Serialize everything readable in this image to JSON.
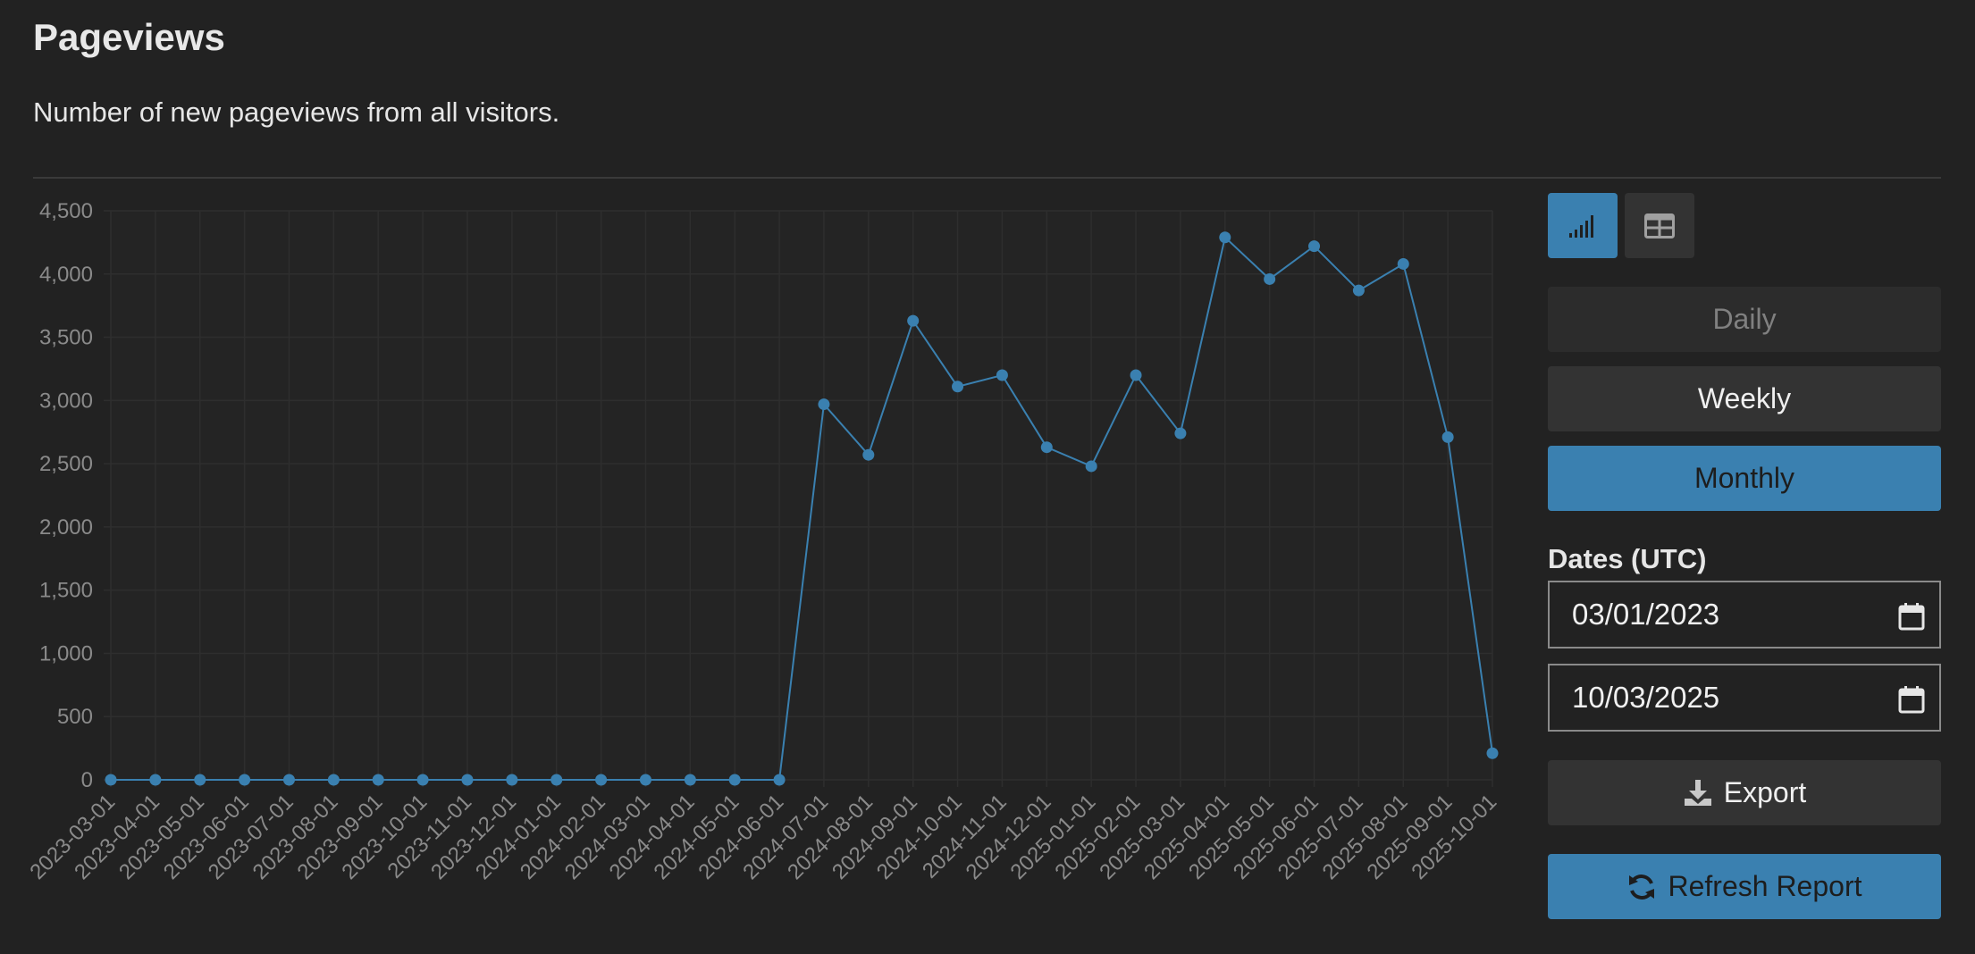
{
  "header": {
    "title": "Pageviews",
    "subtitle": "Number of new pageviews from all visitors."
  },
  "controls": {
    "view_chart_icon": "signal-bars-icon",
    "view_table_icon": "table-icon",
    "daily_label": "Daily",
    "weekly_label": "Weekly",
    "monthly_label": "Monthly",
    "selected_interval": "Monthly",
    "dates_label": "Dates (UTC)",
    "start_date": "03/01/2023",
    "end_date": "10/03/2025",
    "export_label": "Export",
    "refresh_label": "Refresh Report"
  },
  "colors": {
    "accent": "#3a80b0",
    "background": "#222222",
    "grid": "#2c2c2c"
  },
  "chart_data": {
    "type": "line",
    "title": "",
    "xlabel": "",
    "ylabel": "",
    "ylim": [
      0,
      4500
    ],
    "yticks": [
      0,
      500,
      1000,
      1500,
      2000,
      2500,
      3000,
      3500,
      4000,
      4500
    ],
    "yticklabels": [
      "0",
      "500",
      "1,000",
      "1,500",
      "2,000",
      "2,500",
      "3,000",
      "3,500",
      "4,000",
      "4,500"
    ],
    "grid": true,
    "legend": "none",
    "categories": [
      "2023-03-01",
      "2023-04-01",
      "2023-05-01",
      "2023-06-01",
      "2023-07-01",
      "2023-08-01",
      "2023-09-01",
      "2023-10-01",
      "2023-11-01",
      "2023-12-01",
      "2024-01-01",
      "2024-02-01",
      "2024-03-01",
      "2024-04-01",
      "2024-05-01",
      "2024-06-01",
      "2024-07-01",
      "2024-08-01",
      "2024-09-01",
      "2024-10-01",
      "2024-11-01",
      "2024-12-01",
      "2025-01-01",
      "2025-02-01",
      "2025-03-01",
      "2025-04-01",
      "2025-05-01",
      "2025-06-01",
      "2025-07-01",
      "2025-08-01",
      "2025-09-01",
      "2025-10-01"
    ],
    "series": [
      {
        "values": [
          0,
          0,
          0,
          0,
          0,
          0,
          0,
          0,
          0,
          0,
          0,
          0,
          0,
          0,
          0,
          0,
          2970,
          2570,
          3630,
          3110,
          3200,
          2630,
          2480,
          3200,
          2740,
          4290,
          3960,
          4220,
          3870,
          4080,
          2710,
          210
        ],
        "color": "#3a80b0"
      }
    ]
  }
}
